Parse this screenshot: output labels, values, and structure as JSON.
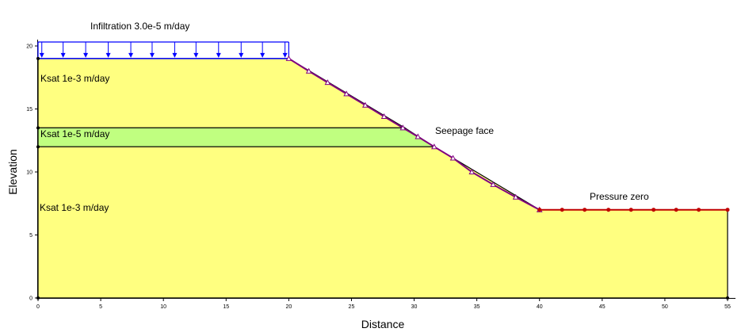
{
  "chart_data": {
    "type": "diagram",
    "x_axis": {
      "label": "Distance",
      "range": [
        0,
        55
      ],
      "ticks": [
        0,
        5,
        10,
        15,
        20,
        25,
        30,
        35,
        40,
        45,
        50,
        55
      ]
    },
    "y_axis": {
      "label": "Elevation",
      "range": [
        0,
        20
      ],
      "ticks": [
        0,
        5,
        10,
        15,
        20
      ]
    },
    "regions": [
      {
        "name": "upper-layer",
        "label": "Ksat 1e-3 m/day",
        "color": "#FFFF80",
        "polygon": [
          [
            0,
            13.5
          ],
          [
            0,
            19
          ],
          [
            20,
            19
          ],
          [
            29.25,
            13.5
          ]
        ]
      },
      {
        "name": "middle-layer",
        "label": "Ksat 1e-5 m/day",
        "color": "#C0FF80",
        "polygon": [
          [
            0,
            12
          ],
          [
            0,
            13.5
          ],
          [
            29.25,
            13.5
          ],
          [
            31.6,
            12
          ]
        ]
      },
      {
        "name": "lower-layer",
        "label": "Ksat 1e-3 m/day",
        "color": "#FFFF80",
        "polygon": [
          [
            0,
            0
          ],
          [
            0,
            12
          ],
          [
            31.6,
            12
          ],
          [
            40,
            7
          ],
          [
            55,
            7
          ],
          [
            55,
            0
          ]
        ]
      }
    ],
    "boundary_conditions": [
      {
        "name": "infiltration",
        "label": "Infiltration 3.0e-5 m/day",
        "color": "#0000FF",
        "x_range": [
          0,
          20
        ],
        "y": 19,
        "arrow_x": [
          0.3,
          2,
          3.8,
          5.6,
          7.4,
          9.1,
          10.9,
          12.6,
          14.4,
          16.2,
          17.9,
          19.7
        ]
      },
      {
        "name": "seepage-face",
        "label": "Seepage face",
        "color": "#800080",
        "points": [
          [
            20,
            19
          ],
          [
            21.6,
            18
          ],
          [
            23.1,
            17.1
          ],
          [
            24.6,
            16.2
          ],
          [
            26.1,
            15.3
          ],
          [
            27.6,
            14.4
          ],
          [
            29.1,
            13.5
          ],
          [
            30.3,
            12.8
          ],
          [
            31.6,
            12
          ],
          [
            33.1,
            11.1
          ],
          [
            34.6,
            10
          ],
          [
            36.3,
            9
          ],
          [
            38.1,
            8
          ],
          [
            40,
            7
          ]
        ]
      },
      {
        "name": "pressure-zero",
        "label": "Pressure zero",
        "color": "#C00000",
        "points": [
          [
            40,
            7
          ],
          [
            41.8,
            7
          ],
          [
            43.6,
            7
          ],
          [
            45.5,
            7
          ],
          [
            47.3,
            7
          ],
          [
            49.1,
            7
          ],
          [
            50.9,
            7
          ],
          [
            52.7,
            7
          ],
          [
            55,
            7
          ]
        ]
      }
    ]
  }
}
